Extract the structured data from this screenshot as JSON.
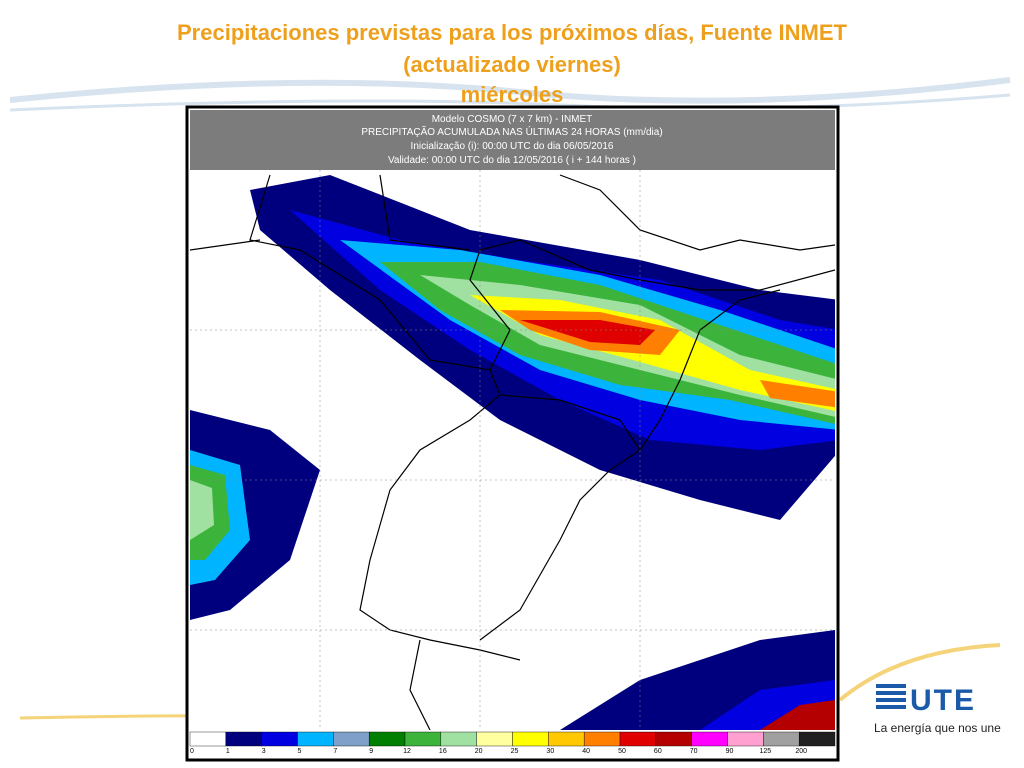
{
  "header": {
    "title_lines": [
      "Precipitaciones previstas para los próximos días, Fuente INMET",
      "(actualizado viernes)",
      "miércoles"
    ]
  },
  "map": {
    "header_lines": [
      "Modelo COSMO (7 x 7 km) - INMET",
      "PRECIPITAÇÃO ACUMULADA NAS ÚLTIMAS 24 HORAS (mm/dia)",
      "Inicialização (i): 00:00 UTC do dia 06/05/2016",
      "Validade: 00:00 UTC do dia 12/05/2016 ( i + 144 horas )"
    ],
    "colorbar": {
      "labels": [
        "0",
        "1",
        "3",
        "5",
        "7",
        "9",
        "12",
        "16",
        "20",
        "25",
        "30",
        "40",
        "50",
        "60",
        "70",
        "90",
        "125",
        "200"
      ],
      "colors": [
        "#ffffff",
        "#00007f",
        "#0000e0",
        "#00b4ff",
        "#7fa0c8",
        "#007f00",
        "#3cb43c",
        "#a0e0a0",
        "#ffffa0",
        "#ffff00",
        "#ffc800",
        "#ff8000",
        "#e00000",
        "#b40000",
        "#ff00ff",
        "#ffa0d0",
        "#a0a0a0",
        "#202020"
      ]
    }
  },
  "logo": {
    "brand": "UTE",
    "tagline": "La energía que nos une"
  }
}
